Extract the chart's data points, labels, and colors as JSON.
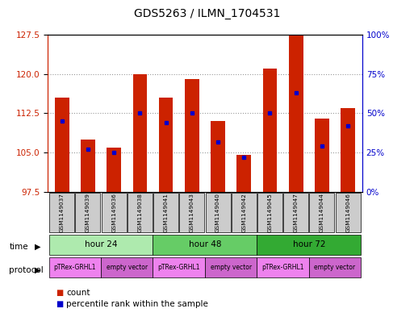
{
  "title": "GDS5263 / ILMN_1704531",
  "samples": [
    "GSM1149037",
    "GSM1149039",
    "GSM1149036",
    "GSM1149038",
    "GSM1149041",
    "GSM1149043",
    "GSM1149040",
    "GSM1149042",
    "GSM1149045",
    "GSM1149047",
    "GSM1149044",
    "GSM1149046"
  ],
  "count_values": [
    115.5,
    107.5,
    106.0,
    120.0,
    115.5,
    119.0,
    111.0,
    104.5,
    121.0,
    127.5,
    111.5,
    113.5
  ],
  "percentile_values": [
    45,
    27,
    25,
    50,
    44,
    50,
    32,
    22,
    50,
    63,
    29,
    42
  ],
  "ymin": 97.5,
  "ymax": 127.5,
  "yticks": [
    97.5,
    105.0,
    112.5,
    120.0,
    127.5
  ],
  "pct_yticks": [
    0,
    25,
    50,
    75,
    100
  ],
  "time_groups": [
    {
      "label": "hour 24",
      "start": 0,
      "end": 4,
      "color": "#aeeaae"
    },
    {
      "label": "hour 48",
      "start": 4,
      "end": 8,
      "color": "#66cc66"
    },
    {
      "label": "hour 72",
      "start": 8,
      "end": 12,
      "color": "#33aa33"
    }
  ],
  "protocol_groups": [
    {
      "label": "pTRex-GRHL1",
      "start": 0,
      "end": 2,
      "color": "#ee82ee"
    },
    {
      "label": "empty vector",
      "start": 2,
      "end": 4,
      "color": "#cc66cc"
    },
    {
      "label": "pTRex-GRHL1",
      "start": 4,
      "end": 6,
      "color": "#ee82ee"
    },
    {
      "label": "empty vector",
      "start": 6,
      "end": 8,
      "color": "#cc66cc"
    },
    {
      "label": "pTRex-GRHL1",
      "start": 8,
      "end": 10,
      "color": "#ee82ee"
    },
    {
      "label": "empty vector",
      "start": 10,
      "end": 12,
      "color": "#cc66cc"
    }
  ],
  "bar_color": "#cc2200",
  "dot_color": "#0000cc",
  "background_color": "#ffffff",
  "grid_color": "#999999",
  "sample_bg_color": "#cccccc",
  "left_axis_color": "#cc2200",
  "right_axis_color": "#0000cc"
}
